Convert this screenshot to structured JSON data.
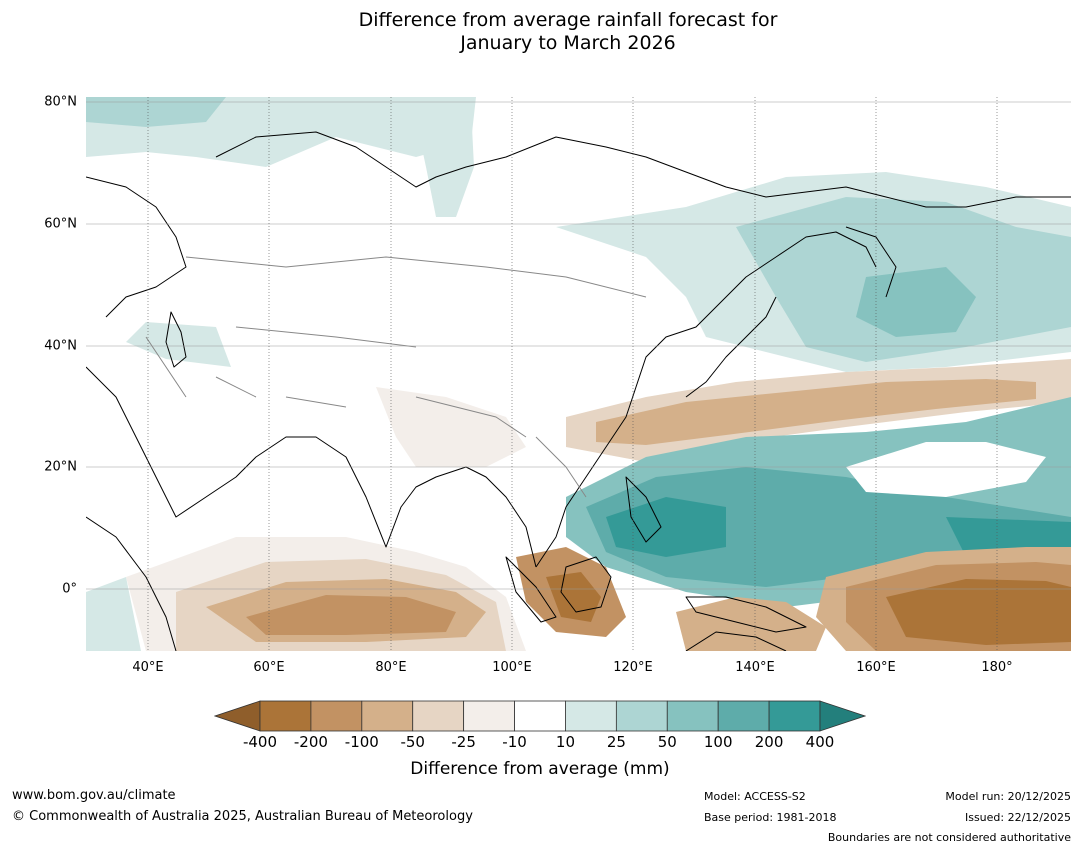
{
  "title_line1": "Difference from average rainfall forecast for",
  "title_line2": "January to March 2026",
  "map": {
    "lat_labels": [
      "80°N",
      "60°N",
      "40°N",
      "20°N",
      "0°"
    ],
    "lon_labels": [
      "40°E",
      "60°E",
      "80°E",
      "100°E",
      "120°E",
      "140°E",
      "160°E",
      "180°"
    ]
  },
  "colorbar": {
    "title": "Difference from average (mm)",
    "ticks": [
      "-400",
      "-200",
      "-100",
      "-50",
      "-25",
      "-10",
      "10",
      "25",
      "50",
      "100",
      "200",
      "400"
    ],
    "colors": [
      "#ab7438",
      "#c29263",
      "#d4b08a",
      "#e6d5c4",
      "#f3eeea",
      "#ffffff",
      "#d5e8e6",
      "#add5d3",
      "#86c2bf",
      "#5eacaa",
      "#349a97"
    ],
    "low_extend_color": "#8f5e2b",
    "high_extend_color": "#237f7c"
  },
  "footer": {
    "website": "www.bom.gov.au/climate",
    "copyright": "© Commonwealth of Australia 2025, Australian Bureau of Meteorology",
    "model": "Model: ACCESS-S2",
    "base_period": "Base period: 1981-2018",
    "model_run": "Model run: 20/12/2025",
    "issued": "Issued: 22/12/2025",
    "disclaimer": "Boundaries are not considered authoritative"
  }
}
